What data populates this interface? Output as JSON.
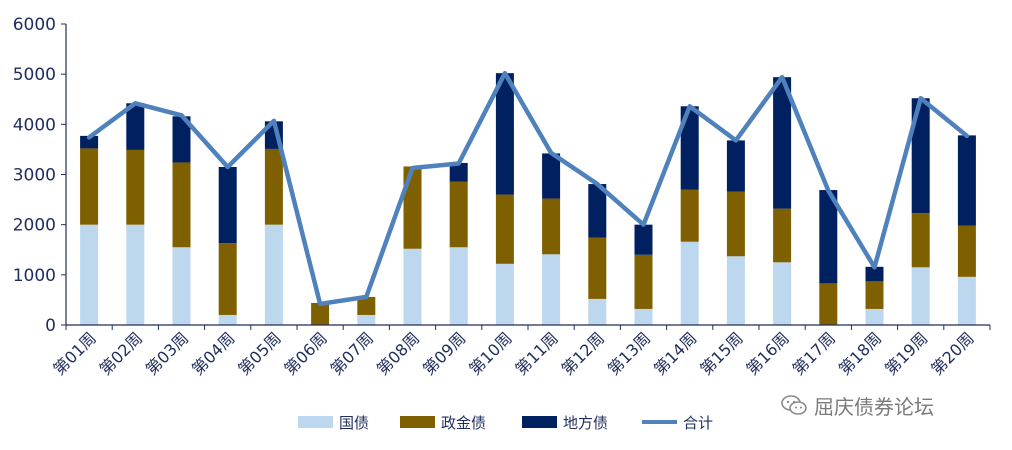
{
  "chart_data": {
    "type": "bar",
    "stacked": true,
    "categories": [
      "第01周",
      "第02周",
      "第03周",
      "第04周",
      "第05周",
      "第06周",
      "第07周",
      "第08周",
      "第09周",
      "第10周",
      "第11周",
      "第12周",
      "第13周",
      "第14周",
      "第15周",
      "第16周",
      "第17周",
      "第18周",
      "第19周",
      "第20周"
    ],
    "series": [
      {
        "name": "国债",
        "color": "#bdd7ee",
        "values": [
          2000,
          2000,
          1550,
          200,
          2000,
          0,
          200,
          1520,
          1550,
          1220,
          1410,
          520,
          320,
          1660,
          1370,
          1250,
          0,
          320,
          1150,
          960
        ]
      },
      {
        "name": "政金债",
        "color": "#7f6000",
        "values": [
          1520,
          1490,
          1690,
          1430,
          1510,
          440,
          360,
          1640,
          1310,
          1380,
          1110,
          1220,
          1080,
          1040,
          1290,
          1070,
          830,
          550,
          1080,
          1020
        ]
      },
      {
        "name": "地方债",
        "color": "#002060",
        "values": [
          250,
          930,
          920,
          1520,
          550,
          0,
          0,
          0,
          370,
          2420,
          900,
          1070,
          600,
          1660,
          1020,
          2620,
          1860,
          290,
          2290,
          1800
        ]
      }
    ],
    "line": {
      "name": "合计",
      "color": "#4f81bd",
      "values": [
        3740,
        4420,
        4180,
        3150,
        4070,
        420,
        560,
        3130,
        3220,
        5020,
        3430,
        2810,
        2000,
        4360,
        3680,
        4940,
        2680,
        1150,
        4520,
        3770
      ]
    },
    "y_ticks": [
      "0",
      "1000",
      "2000",
      "3000",
      "4000",
      "5000",
      "6000"
    ],
    "ylim": [
      0,
      6000
    ],
    "legend_position": "bottom",
    "grid": false
  },
  "watermark": {
    "text": "屈庆债券论坛"
  }
}
